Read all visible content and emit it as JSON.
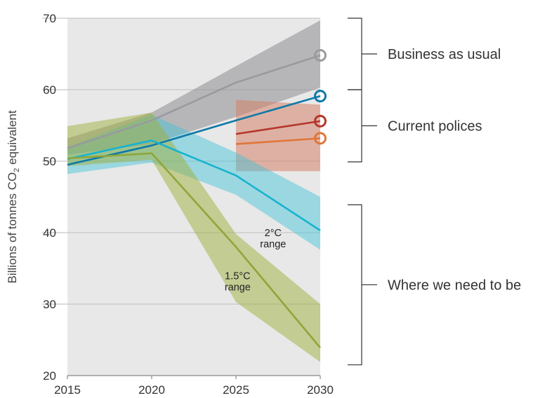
{
  "chart_data": {
    "type": "line",
    "ylabel_parts": [
      "Billions of tonnes CO",
      "2",
      " equivalent"
    ],
    "xlim": [
      2015,
      2030
    ],
    "ylim": [
      20,
      70
    ],
    "x_ticks": [
      "2015",
      "2020",
      "2025",
      "2030"
    ],
    "y_ticks": [
      "20",
      "30",
      "40",
      "50",
      "60",
      "70"
    ],
    "grid": true,
    "bands": [
      {
        "id": "bau",
        "color": "#8c8d91",
        "opacity": 0.55,
        "x": [
          2015,
          2020,
          2025,
          2030
        ],
        "upper": [
          53.2,
          56.8,
          63.3,
          69.7
        ],
        "lower": [
          50.9,
          52.4,
          56.2,
          60.3
        ]
      },
      {
        "id": "current",
        "color": "#d4826a",
        "opacity": 0.55,
        "x": [
          2025,
          2030
        ],
        "upper": [
          58.6,
          57.9
        ],
        "lower": [
          48.6,
          48.6
        ]
      },
      {
        "id": "two_deg",
        "color": "#3fc3d6",
        "opacity": 0.45,
        "x": [
          2015,
          2020,
          2025,
          2030
        ],
        "upper": [
          52.0,
          56.5,
          51.2,
          45.0
        ],
        "lower": [
          48.2,
          49.8,
          45.3,
          37.6
        ]
      },
      {
        "id": "one_five_deg",
        "color": "#9eb03b",
        "opacity": 0.5,
        "x": [
          2015,
          2020,
          2025,
          2030
        ],
        "upper": [
          54.9,
          56.8,
          39.8,
          30.0
        ],
        "lower": [
          49.3,
          50.2,
          30.3,
          21.9
        ]
      }
    ],
    "series": [
      {
        "id": "bau_line",
        "color": "#999a9e",
        "x": [
          2015,
          2020,
          2025,
          2030
        ],
        "y": [
          51.8,
          55.7,
          61.0,
          64.8
        ],
        "marker": true
      },
      {
        "id": "blue_line",
        "color": "#0e79a8",
        "x": [
          2015,
          2020,
          2025,
          2030
        ],
        "y": [
          49.5,
          52.2,
          55.7,
          59.1
        ],
        "marker": true
      },
      {
        "id": "red_line",
        "color": "#b5362c",
        "x": [
          2025,
          2030
        ],
        "y": [
          53.8,
          55.6
        ],
        "marker": true
      },
      {
        "id": "orange_line",
        "color": "#e0763a",
        "x": [
          2025,
          2030
        ],
        "y": [
          52.4,
          53.2
        ],
        "marker": true
      },
      {
        "id": "two_deg_line",
        "color": "#17b3cf",
        "x": [
          2015,
          2020,
          2025,
          2030
        ],
        "y": [
          50.3,
          52.9,
          48.0,
          40.3
        ],
        "marker": false
      },
      {
        "id": "one_five_deg_line",
        "color": "#8fa63a",
        "x": [
          2015,
          2020,
          2025,
          2030
        ],
        "y": [
          50.4,
          51.1,
          38.0,
          23.9
        ],
        "marker": false
      }
    ],
    "band_labels": [
      {
        "id": "two_deg_label",
        "lines": [
          "2°C",
          "range"
        ],
        "x": 2027.2,
        "y": 39.5
      },
      {
        "id": "one_five_deg_label",
        "lines": [
          "1.5°C",
          "range"
        ],
        "x": 2025.1,
        "y": 33.5
      }
    ],
    "brackets": [
      {
        "id": "business-as-usual",
        "label": "Business as usual",
        "y_top": 70.0,
        "y_bottom": 60.0
      },
      {
        "id": "current-policies",
        "label": "Current polices",
        "y_top": 60.0,
        "y_bottom": 49.9
      },
      {
        "id": "where-we-need-to-be",
        "label": "Where we need to be",
        "y_top": 43.9,
        "y_bottom": 21.5
      }
    ],
    "colors": {
      "plot_background": "#e8e8e8",
      "grid": "#c6c6c6"
    }
  }
}
